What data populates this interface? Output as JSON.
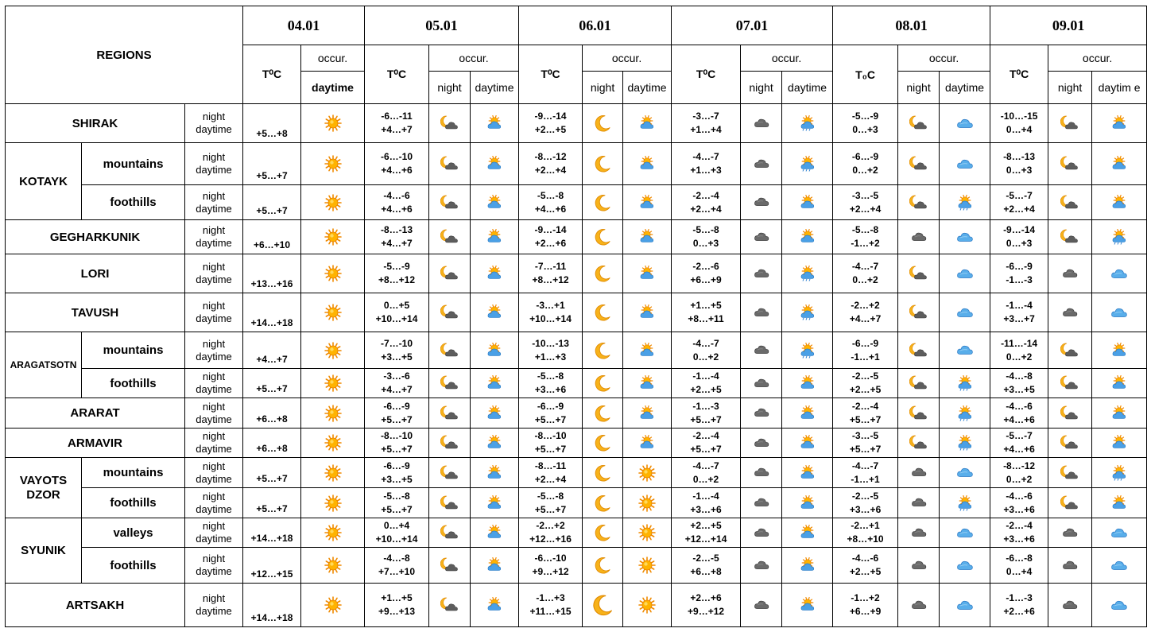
{
  "header": {
    "regions_label": "REGIONS",
    "dates": [
      "04.01",
      "05.01",
      "06.01",
      "07.01",
      "08.01",
      "09.01"
    ],
    "temp_label": "T⁰C",
    "temp_label_alt": "T₀C",
    "occur_label": "occur.",
    "night_label": "night",
    "daytime_label": "daytime",
    "daytime_wrapped": "daytim e"
  },
  "night_word": "night",
  "daytime_word": "daytime",
  "icons": {
    "sun": "sun-icon",
    "moon": "moon-icon",
    "moon_cloud": "moon-cloud-icon",
    "sun_cloud": "sun-cloud-icon",
    "sun_cloud_rain": "sun-cloud-rain-icon",
    "dark_cloud": "dark-cloud-icon",
    "blue_cloud": "blue-cloud-icon"
  },
  "colors": {
    "sun": "#f5a300",
    "moon": "#f2a20a",
    "cloud_dark": "#555555",
    "cloud_blue": "#3a8fd8"
  },
  "regions": {
    "shirak": "SHIRAK",
    "kotayk": "KOTAYK",
    "gegharkunik": "GEGHARKUNIK",
    "lori": "LORI",
    "tavush": "TAVUSH",
    "aragatsotn": "ARAGATSOTN",
    "ararat": "ARARAT",
    "armavir": "ARMAVIR",
    "vayots_dzor": "VAYOTS DZOR",
    "syunik": "SYUNIK",
    "artsakh": "ARTSAKH"
  },
  "subregions": {
    "mountains": "mountains",
    "foothills": "foothills",
    "valleys": "valleys"
  },
  "rows": [
    {
      "t04": "+5…+8",
      "t": [
        [
          "-6…-11",
          "+4…+7"
        ],
        [
          "-9…-14",
          "+2…+5"
        ],
        [
          "-3…-7",
          "+1…+4"
        ],
        [
          "-5…-9",
          "0…+3"
        ],
        [
          "-10…-15",
          "0…+4"
        ]
      ],
      "i": [
        "sun",
        "moon_cloud",
        "sun_cloud",
        "moon",
        "sun_cloud",
        "dark_cloud",
        "sun_cloud_rain",
        "moon_cloud",
        "blue_cloud",
        "moon_cloud",
        "sun_cloud"
      ]
    },
    {
      "t04": "+5…+7",
      "t": [
        [
          "-6…-10",
          "+4…+6"
        ],
        [
          "-8…-12",
          "+2…+4"
        ],
        [
          "-4…-7",
          "+1…+3"
        ],
        [
          "-6…-9",
          "0…+2"
        ],
        [
          "-8…-13",
          "0…+3"
        ]
      ],
      "i": [
        "sun",
        "moon_cloud",
        "sun_cloud",
        "moon",
        "sun_cloud",
        "dark_cloud",
        "sun_cloud_rain",
        "moon_cloud",
        "blue_cloud",
        "moon_cloud",
        "sun_cloud"
      ]
    },
    {
      "t04": "+5…+7",
      "t": [
        [
          "-4…-6",
          "+4…+6"
        ],
        [
          "-5…-8",
          "+4…+6"
        ],
        [
          "-2…-4",
          "+2…+4"
        ],
        [
          "-3…-5",
          "+2…+4"
        ],
        [
          "-5…-7",
          "+2…+4"
        ]
      ],
      "i": [
        "sun",
        "moon_cloud",
        "sun_cloud",
        "moon",
        "sun_cloud",
        "dark_cloud",
        "sun_cloud",
        "moon_cloud",
        "sun_cloud_rain",
        "moon_cloud",
        "sun_cloud"
      ]
    },
    {
      "t04": "+6…+10",
      "t": [
        [
          "-8…-13",
          "+4…+7"
        ],
        [
          "-9…-14",
          "+2…+6"
        ],
        [
          "-5…-8",
          "0…+3"
        ],
        [
          "-5…-8",
          "-1…+2"
        ],
        [
          "-9…-14",
          "0…+3"
        ]
      ],
      "i": [
        "sun",
        "moon_cloud",
        "sun_cloud",
        "moon",
        "sun_cloud",
        "dark_cloud",
        "sun_cloud",
        "dark_cloud",
        "blue_cloud",
        "moon_cloud",
        "sun_cloud_rain"
      ]
    },
    {
      "t04": "+13…+16",
      "t": [
        [
          "-5…-9",
          "+8…+12"
        ],
        [
          "-7…-11",
          "+8…+12"
        ],
        [
          "-2…-6",
          "+6…+9"
        ],
        [
          "-4…-7",
          "0…+2"
        ],
        [
          "-6…-9",
          "-1…-3"
        ]
      ],
      "i": [
        "sun",
        "moon_cloud",
        "sun_cloud",
        "moon",
        "sun_cloud",
        "dark_cloud",
        "sun_cloud_rain",
        "moon_cloud",
        "blue_cloud",
        "dark_cloud",
        "blue_cloud"
      ]
    },
    {
      "t04": "+14…+18",
      "t": [
        [
          "0…+5",
          "+10…+14"
        ],
        [
          "-3…+1",
          "+10…+14"
        ],
        [
          "+1…+5",
          "+8…+11"
        ],
        [
          "-2…+2",
          "+4…+7"
        ],
        [
          "-1…-4",
          "+3…+7"
        ]
      ],
      "i": [
        "sun",
        "moon_cloud",
        "sun_cloud",
        "moon",
        "sun_cloud",
        "dark_cloud",
        "sun_cloud_rain",
        "moon_cloud",
        "blue_cloud",
        "dark_cloud",
        "blue_cloud"
      ]
    },
    {
      "t04": "+4…+7",
      "t": [
        [
          "-7…-10",
          "+3…+5"
        ],
        [
          "-10…-13",
          "+1…+3"
        ],
        [
          "-4…-7",
          "0…+2"
        ],
        [
          "-6…-9",
          "-1…+1"
        ],
        [
          "-11…-14",
          "0…+2"
        ]
      ],
      "i": [
        "sun",
        "moon_cloud",
        "sun_cloud",
        "moon",
        "sun_cloud",
        "dark_cloud",
        "sun_cloud_rain",
        "moon_cloud",
        "blue_cloud",
        "moon_cloud",
        "sun_cloud"
      ]
    },
    {
      "t04": "+5…+7",
      "t": [
        [
          "-3…-6",
          "+4…+7"
        ],
        [
          "-5…-8",
          "+3…+6"
        ],
        [
          "-1…-4",
          "+2…+5"
        ],
        [
          "-2…-5",
          "+2…+5"
        ],
        [
          "-4…-8",
          "+3…+5"
        ]
      ],
      "i": [
        "sun",
        "moon_cloud",
        "sun_cloud",
        "moon",
        "sun_cloud",
        "dark_cloud",
        "sun_cloud",
        "moon_cloud",
        "sun_cloud_rain",
        "moon_cloud",
        "sun_cloud"
      ]
    },
    {
      "t04": "+6…+8",
      "t": [
        [
          "-6…-9",
          "+5…+7"
        ],
        [
          "-6…-9",
          "+5…+7"
        ],
        [
          "-1…-3",
          "+5…+7"
        ],
        [
          "-2…-4",
          "+5…+7"
        ],
        [
          "-4…-6",
          "+4…+6"
        ]
      ],
      "i": [
        "sun",
        "moon_cloud",
        "sun_cloud",
        "moon",
        "sun_cloud",
        "dark_cloud",
        "sun_cloud",
        "moon_cloud",
        "sun_cloud_rain",
        "moon_cloud",
        "sun_cloud"
      ]
    },
    {
      "t04": "+6…+8",
      "t": [
        [
          "-8…-10",
          "+5…+7"
        ],
        [
          "-8…-10",
          "+5…+7"
        ],
        [
          "-2…-4",
          "+5…+7"
        ],
        [
          "-3…-5",
          "+5…+7"
        ],
        [
          "-5…-7",
          "+4…+6"
        ]
      ],
      "i": [
        "sun",
        "moon_cloud",
        "sun_cloud",
        "moon",
        "sun_cloud",
        "dark_cloud",
        "sun_cloud",
        "moon_cloud",
        "sun_cloud_rain",
        "moon_cloud",
        "sun_cloud"
      ]
    },
    {
      "t04": "+5…+7",
      "t": [
        [
          "-6…-9",
          "+3…+5"
        ],
        [
          "-8…-11",
          "+2…+4"
        ],
        [
          "-4…-7",
          "0…+2"
        ],
        [
          "-4…-7",
          "-1…+1"
        ],
        [
          "-8…-12",
          "0…+2"
        ]
      ],
      "i": [
        "sun",
        "moon_cloud",
        "sun_cloud",
        "moon",
        "sun",
        "dark_cloud",
        "sun_cloud",
        "dark_cloud",
        "blue_cloud",
        "moon_cloud",
        "sun_cloud_rain"
      ]
    },
    {
      "t04": "+5…+7",
      "t": [
        [
          "-5…-8",
          "+5…+7"
        ],
        [
          "-5…-8",
          "+5…+7"
        ],
        [
          "-1…-4",
          "+3…+6"
        ],
        [
          "-2…-5",
          "+3…+6"
        ],
        [
          "-4…-6",
          "+3…+6"
        ]
      ],
      "i": [
        "sun",
        "moon_cloud",
        "sun_cloud",
        "moon",
        "sun",
        "dark_cloud",
        "sun_cloud",
        "dark_cloud",
        "sun_cloud_rain",
        "moon_cloud",
        "sun_cloud"
      ]
    },
    {
      "t04": "+14…+18",
      "t": [
        [
          "0…+4",
          "+10…+14"
        ],
        [
          "-2…+2",
          "+12…+16"
        ],
        [
          "+2…+5",
          "+12…+14"
        ],
        [
          "-2…+1",
          "+8…+10"
        ],
        [
          "-2…-4",
          "+3…+6"
        ]
      ],
      "i": [
        "sun",
        "moon_cloud",
        "sun_cloud",
        "moon",
        "sun",
        "dark_cloud",
        "sun_cloud",
        "dark_cloud",
        "blue_cloud",
        "dark_cloud",
        "blue_cloud"
      ]
    },
    {
      "t04": "+12…+15",
      "t": [
        [
          "-4…-8",
          "+7…+10"
        ],
        [
          "-6…-10",
          "+9…+12"
        ],
        [
          "-2…-5",
          "+6…+8"
        ],
        [
          "-4…-6",
          "+2…+5"
        ],
        [
          "-6…-8",
          "0…+4"
        ]
      ],
      "i": [
        "sun",
        "moon_cloud",
        "sun_cloud",
        "moon",
        "sun",
        "dark_cloud",
        "sun_cloud",
        "dark_cloud",
        "blue_cloud",
        "dark_cloud",
        "blue_cloud"
      ]
    },
    {
      "t04": "+14…+18",
      "t": [
        [
          "+1…+5",
          "+9…+13"
        ],
        [
          "-1…+3",
          "+11…+15"
        ],
        [
          "+2…+6",
          "+9…+12"
        ],
        [
          "-1…+2",
          "+6…+9"
        ],
        [
          "-1…-3",
          "+2…+6"
        ]
      ],
      "i": [
        "sun",
        "moon_cloud",
        "sun_cloud",
        "moon",
        "sun",
        "dark_cloud",
        "sun_cloud",
        "dark_cloud",
        "blue_cloud",
        "dark_cloud",
        "blue_cloud"
      ]
    }
  ]
}
